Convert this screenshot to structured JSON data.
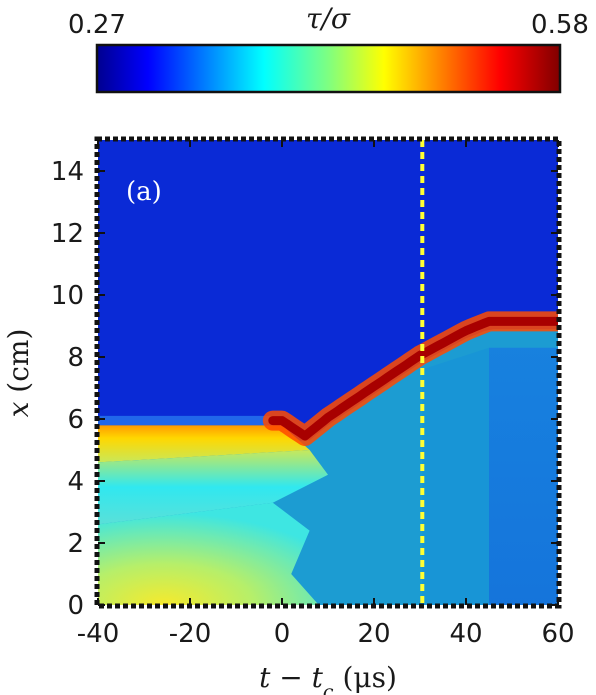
{
  "chart_data": {
    "type": "heatmap",
    "panel_label": "(a)",
    "colorbar": {
      "label": "τ/σ",
      "min": 0.27,
      "max": 0.58,
      "min_label": "0.27",
      "max_label": "0.58",
      "colormap": "jet"
    },
    "xlabel": "t − t_c (μs)",
    "xlabel_parts": {
      "main": "t − t",
      "sub": "c",
      "unit": " (μs)"
    },
    "ylabel": "x (cm)",
    "ylabel_parts": {
      "var": "x",
      "unit": " (cm)"
    },
    "xlim": [
      -40,
      60
    ],
    "ylim": [
      0,
      15
    ],
    "xticks": [
      -40,
      -20,
      0,
      20,
      40,
      60
    ],
    "xtick_labels": [
      "-40",
      "-20",
      "0",
      "20",
      "40",
      "60"
    ],
    "yticks": [
      0,
      2,
      4,
      6,
      8,
      10,
      12,
      14
    ],
    "ytick_labels": [
      "0",
      "2",
      "4",
      "6",
      "8",
      "10",
      "12",
      "14"
    ],
    "vertical_marker": {
      "x": 30.5,
      "style": "dotted",
      "color": "#ffff33"
    },
    "front_path": [
      {
        "t": -40,
        "x": 5.8
      },
      {
        "t": 0,
        "x": 5.8
      },
      {
        "t": 5,
        "x": 5.3
      },
      {
        "t": 10,
        "x": 5.9
      },
      {
        "t": 20,
        "x": 6.9
      },
      {
        "t": 30,
        "x": 7.9
      },
      {
        "t": 40,
        "x": 8.7
      },
      {
        "t": 45,
        "x": 9.0
      },
      {
        "t": 60,
        "x": 9.0
      }
    ],
    "colors": {
      "background_low": "#0a2ad6",
      "body": "#1c9cd2",
      "front": "#a80000"
    }
  }
}
